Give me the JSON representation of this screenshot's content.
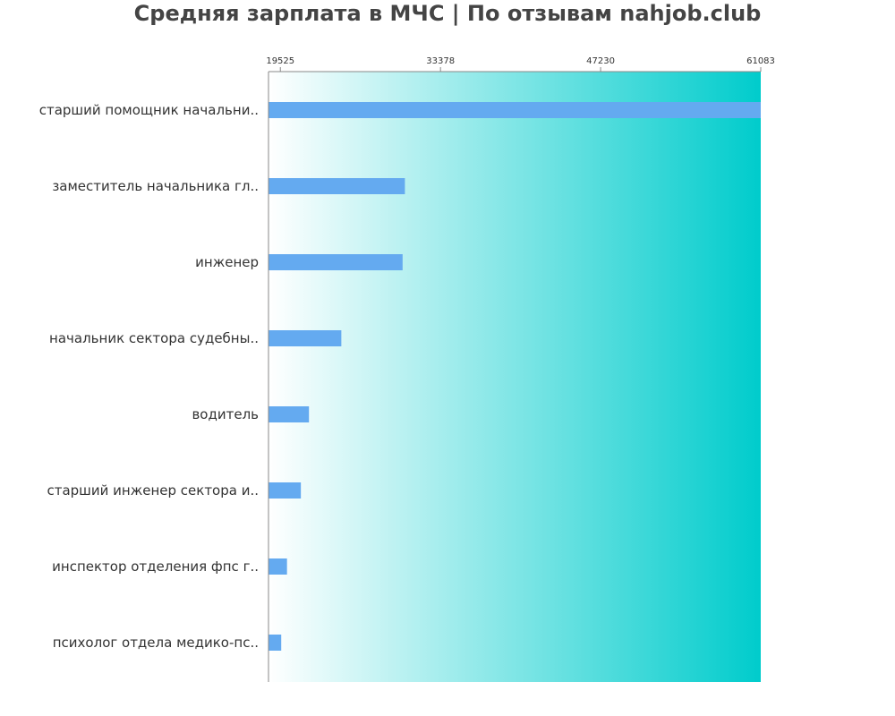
{
  "chart_data": {
    "type": "bar",
    "orientation": "horizontal",
    "title": "Средняя зарплата в МЧС | По отзывам nahjob.club",
    "xlabel": "",
    "ylabel": "",
    "x_ticks": [
      19525,
      33378,
      47230,
      61083
    ],
    "xlim": [
      18500,
      61083
    ],
    "categories": [
      "старший помощник начальни..",
      "заместитель начальника гл..",
      "инженер",
      "начальник сектора судебны..",
      "водитель",
      "старший инженер сектора и..",
      "инспектор отделения фпс г..",
      "психолог отдела медико-пс.."
    ],
    "values": [
      61083,
      30300,
      30100,
      24800,
      22000,
      21300,
      20100,
      19600
    ],
    "grid": false,
    "legend": "none",
    "colors": {
      "bar": "#64aaf0",
      "background_gradient_start": "#ffffff",
      "background_gradient_end": "#00cccc",
      "axis": "#888888",
      "text": "#333333",
      "title": "#444444"
    }
  }
}
